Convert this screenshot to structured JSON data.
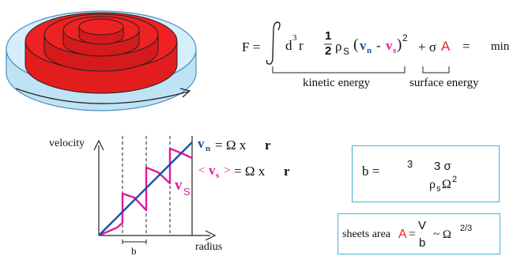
{
  "equation": {
    "lhs": "F =",
    "d3r": "d",
    "cube": "3",
    "r": "r",
    "half_num": "1",
    "half_den": "2",
    "rho": "ρ",
    "rho_sub": "S",
    "vn": "v",
    "vn_sub": "n",
    "minus": "-",
    "vs": "v",
    "vs_sub": "s",
    "square": "2",
    "plus_sigma": "+ σ",
    "A": "A",
    "equals": "=",
    "min": "min",
    "kinetic_label": "kinetic energy",
    "surface_label": "surface energy"
  },
  "plot": {
    "ylabel": "velocity",
    "xlabel": "radius",
    "b_label": "b",
    "vn_label": "v",
    "vn_sub": "n",
    "vn_eq": "= Ω x",
    "vn_r": "r",
    "vs_avg_open": "<",
    "vs_avg_v": "v",
    "vs_avg_sub": "s",
    "vs_avg_close": ">",
    "vs_avg_eq": "= Ω x",
    "vs_avg_r": "r",
    "vs_curve_label": "v",
    "vs_curve_sub": "S"
  },
  "b_box": {
    "lhs": "b =",
    "root_index": "3",
    "num": "3 σ",
    "den_rho": "ρ",
    "den_sub": "s",
    "den_omega": "Ω",
    "den_exp": "2"
  },
  "area_box": {
    "label": "sheets area",
    "A": "A",
    "eq": "=",
    "num": "V",
    "den": "b",
    "approx": "~ Ω",
    "exp": "2/3"
  },
  "colors": {
    "red": "#ee2222",
    "blue": "#1a4fa3",
    "magenta": "#e5189a",
    "box_border": "#3fb3d9",
    "cyl": "#bfe3f5"
  }
}
